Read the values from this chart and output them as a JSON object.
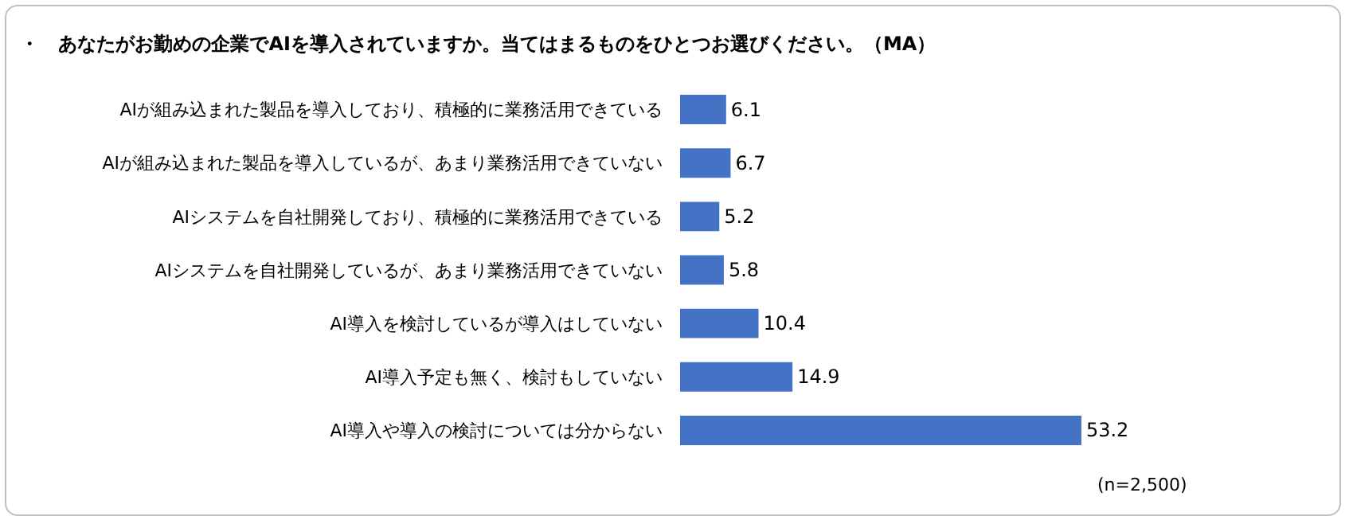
{
  "chart_data": {
    "type": "bar",
    "orientation": "horizontal",
    "title": "・　あなたがお勤めの企業でAIを導入されていますか。当てはまるものをひとつお選びください。（MA）",
    "categories": [
      "AIが組み込まれた製品を導入しており、積極的に業務活用できている",
      "AIが組み込まれた製品を導入しているが、あまり業務活用できていない",
      "AIシステムを自社開発しており、積極的に業務活用できている",
      "AIシステムを自社開発しているが、あまり業務活用できていない",
      "AI導入を検討しているが導入はしていない",
      "AI導入予定も無く、検討もしていない",
      "AI導入や導入の検討については分からない"
    ],
    "values": [
      6.1,
      6.7,
      5.2,
      5.8,
      10.4,
      14.9,
      53.2
    ],
    "color": "#4472c4",
    "data_labels": true,
    "grid": false,
    "annotations": [
      "(n=2,500)"
    ]
  }
}
